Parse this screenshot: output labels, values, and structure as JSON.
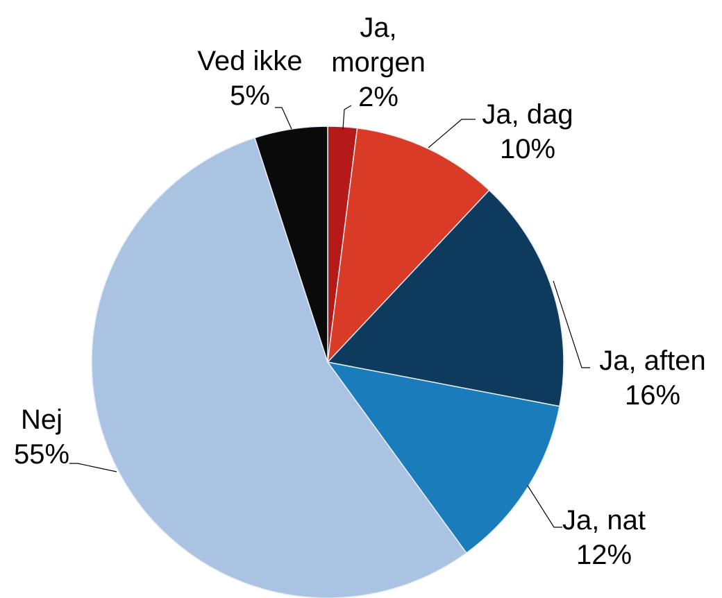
{
  "chart_data": {
    "type": "pie",
    "categories": [
      "Ja, morgen",
      "Ja, dag",
      "Ja, aften",
      "Ja, nat",
      "Nej",
      "Ved ikke"
    ],
    "values": [
      2,
      10,
      16,
      12,
      55,
      5
    ],
    "value_labels": [
      "2%",
      "10%",
      "16%",
      "12%",
      "55%",
      "5%"
    ],
    "colors": [
      "#b51a1a",
      "#d93b27",
      "#0e3a5e",
      "#1a7cba",
      "#aac3e2",
      "#0a0a0a"
    ]
  }
}
